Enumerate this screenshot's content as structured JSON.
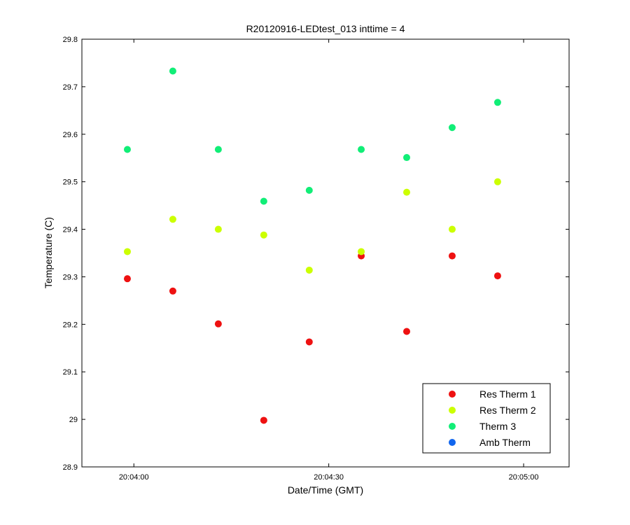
{
  "chart_data": {
    "type": "scatter",
    "title": "R20120916-LEDtest_013 inttime = 4",
    "xlabel": "Date/Time (GMT)",
    "ylabel": "Temperature (C)",
    "xlim": [
      "20:03:52",
      "20:05:07"
    ],
    "ylim": [
      28.9,
      29.8
    ],
    "x_ticks": [
      "20:04:00",
      "20:04:30",
      "20:05:00"
    ],
    "y_ticks": [
      "28.9",
      "29",
      "29.1",
      "29.2",
      "29.3",
      "29.4",
      "29.5",
      "29.6",
      "29.7",
      "29.8"
    ],
    "grid": false,
    "legend_position": "bottom-right",
    "series": [
      {
        "name": "Res Therm 1",
        "color": "#ee1111",
        "x": [
          "20:03:59",
          "20:04:06",
          "20:04:13",
          "20:04:20",
          "20:04:27",
          "20:04:35",
          "20:04:42",
          "20:04:49",
          "20:04:56"
        ],
        "y": [
          29.296,
          29.27,
          29.201,
          28.998,
          29.163,
          29.344,
          29.185,
          29.344,
          29.302
        ]
      },
      {
        "name": "Res Therm 2",
        "color": "#ccff00",
        "x": [
          "20:03:59",
          "20:04:06",
          "20:04:13",
          "20:04:20",
          "20:04:27",
          "20:04:35",
          "20:04:42",
          "20:04:49",
          "20:04:56"
        ],
        "y": [
          29.353,
          29.421,
          29.4,
          29.388,
          29.314,
          29.353,
          29.478,
          29.4,
          29.5
        ]
      },
      {
        "name": "Therm 3",
        "color": "#11ee77",
        "x": [
          "20:03:59",
          "20:04:06",
          "20:04:13",
          "20:04:20",
          "20:04:27",
          "20:04:35",
          "20:04:42",
          "20:04:49",
          "20:04:56"
        ],
        "y": [
          29.568,
          29.733,
          29.568,
          29.459,
          29.482,
          29.568,
          29.551,
          29.614,
          29.667
        ]
      },
      {
        "name": "Amb Therm",
        "color": "#1166ee",
        "x": [],
        "y": []
      }
    ]
  }
}
